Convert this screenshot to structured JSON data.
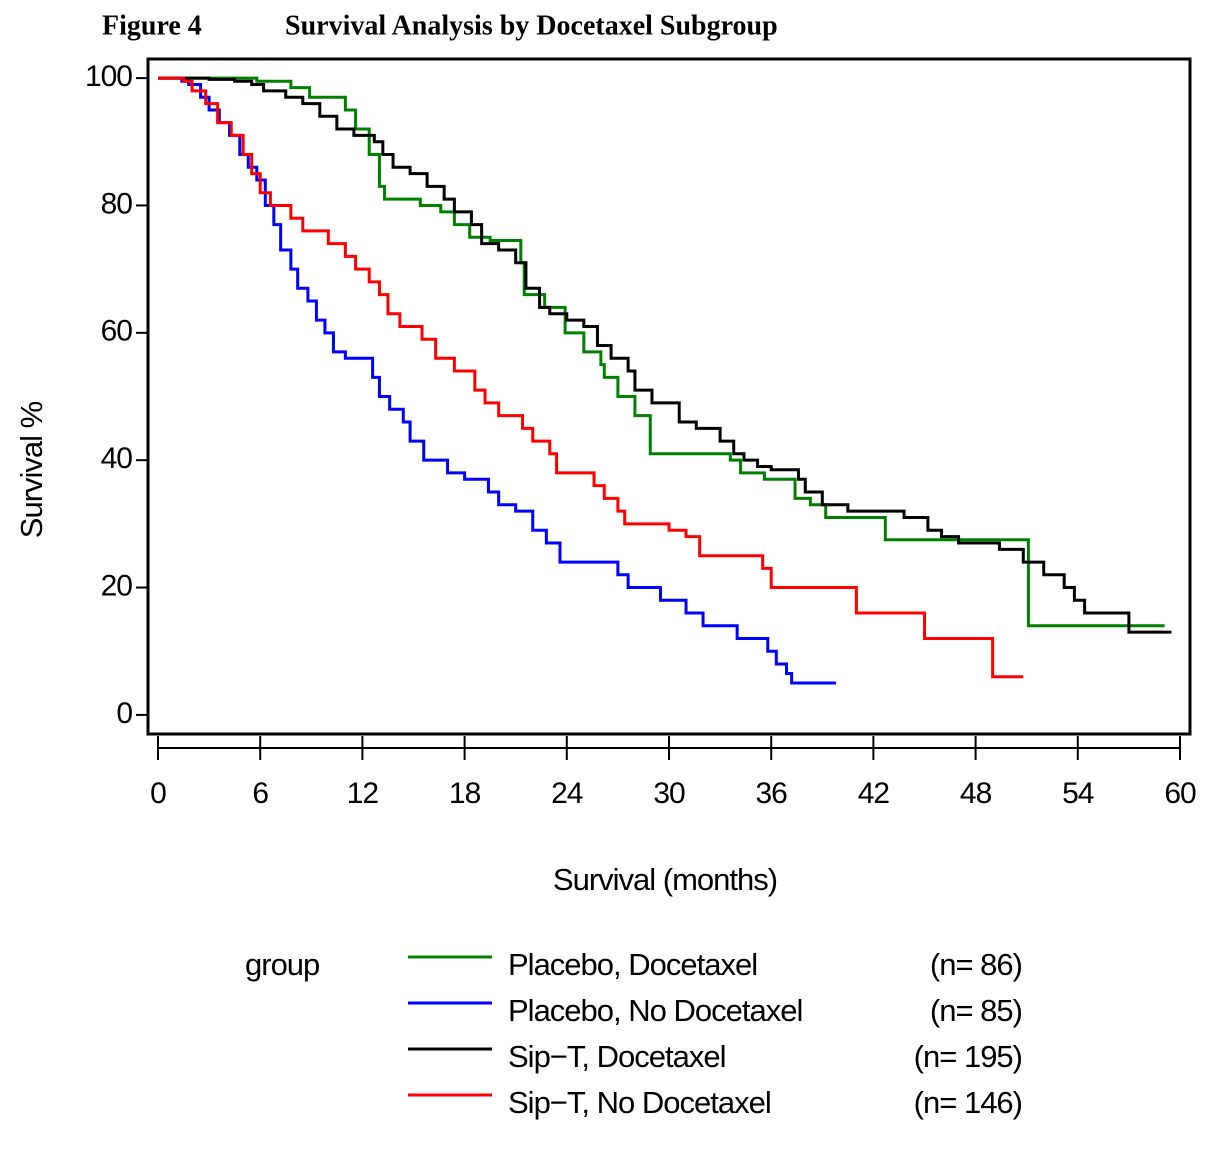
{
  "figure_label": "Figure 4",
  "chart_data": {
    "type": "step",
    "title": "Survival Analysis by Docetaxel Subgroup",
    "xlabel": "Survival (months)",
    "ylabel": "Survival %",
    "legend_title": "group",
    "xlim": [
      0,
      60
    ],
    "xticks": [
      0,
      6,
      12,
      18,
      24,
      30,
      36,
      42,
      48,
      54,
      60
    ],
    "ylim": [
      -3,
      103
    ],
    "yticks": [
      0,
      20,
      40,
      60,
      80,
      100
    ],
    "series": [
      {
        "name": "Placebo, Docetaxel",
        "n_label": "(n= 86)",
        "color": "#008000",
        "x": [
          0,
          5.8,
          7.8,
          8.9,
          11,
          11.6,
          12.4,
          13,
          13.3,
          15.4,
          16.6,
          17.4,
          18.3,
          19.5,
          21.3,
          21.5,
          22.7,
          23.9,
          25,
          26,
          26.2,
          27,
          28,
          28.9,
          33.6,
          34.2,
          35.6,
          37.4,
          38.3,
          39.2,
          42.7,
          51.1,
          59.1
        ],
        "values": [
          100,
          99.5,
          98.5,
          97,
          95,
          92,
          88,
          83,
          81,
          80,
          79,
          77,
          75,
          74.5,
          71,
          66,
          64,
          60,
          57,
          55,
          53,
          50,
          47,
          41,
          40,
          38,
          37,
          34,
          33,
          31,
          27.5,
          14,
          14
        ]
      },
      {
        "name": "Placebo, No Docetaxel",
        "n_label": "(n= 85)",
        "color": "#0000ff",
        "x": [
          0,
          1.4,
          1.8,
          2.5,
          3,
          3.6,
          4.2,
          4.8,
          5.3,
          5.8,
          6.3,
          6.8,
          7.2,
          7.8,
          8.2,
          8.8,
          9.3,
          9.8,
          10.3,
          11,
          12.6,
          13,
          13.6,
          14.4,
          14.8,
          15.6,
          17,
          18,
          19.4,
          20,
          21,
          22,
          22.8,
          23.6,
          27,
          27.6,
          29.5,
          31,
          32,
          34,
          35.8,
          36.3,
          36.9,
          37.2,
          39.8
        ],
        "values": [
          100,
          99.5,
          99,
          97,
          95,
          93,
          91,
          88,
          86,
          84,
          80,
          77,
          73,
          70,
          67,
          65,
          62,
          60,
          57,
          56,
          53,
          50,
          48,
          46,
          43,
          40,
          38,
          37,
          35,
          33,
          32,
          29,
          27,
          24,
          22,
          20,
          18,
          16,
          14,
          12,
          10,
          8,
          6.5,
          5,
          5
        ]
      },
      {
        "name": "Sip−T, Docetaxel",
        "n_label": "(n= 195)",
        "color": "#000000",
        "x": [
          0,
          3,
          4.5,
          5.5,
          6.2,
          7.5,
          8.5,
          9.5,
          10.5,
          11.5,
          12.7,
          13.2,
          13.8,
          14.8,
          15.8,
          16.8,
          17.4,
          18.4,
          19,
          20,
          21,
          21.6,
          22.4,
          23,
          24,
          25,
          25.8,
          26.6,
          27.6,
          28,
          29,
          30.6,
          31.6,
          33,
          33.8,
          34.4,
          35.2,
          36,
          37.6,
          38,
          39,
          40.5,
          43.8,
          45.2,
          46,
          47,
          49.4,
          50.8,
          52,
          53.2,
          53.8,
          54.4,
          57,
          59.5
        ],
        "values": [
          100,
          99.8,
          99.5,
          99,
          98,
          97,
          96,
          94,
          92,
          91,
          90,
          88,
          86,
          85,
          83,
          81,
          79,
          77,
          74,
          73,
          71,
          67,
          64,
          63,
          62,
          61,
          58,
          56,
          54,
          51,
          49,
          46,
          45,
          43,
          41,
          40,
          39,
          38.5,
          37,
          35,
          33,
          32,
          31,
          29,
          28,
          27,
          26,
          24,
          22,
          20,
          18,
          16,
          13,
          13
        ]
      },
      {
        "name": "Sip−T, No Docetaxel",
        "n_label": "(n= 146)",
        "color": "#ff0000",
        "x": [
          0,
          1.5,
          2,
          2.8,
          3.5,
          4.3,
          5,
          5.5,
          6,
          6.6,
          7.8,
          8.5,
          10,
          11,
          11.6,
          12.4,
          13,
          13.5,
          14.2,
          15.5,
          16.3,
          17.4,
          18.6,
          19.2,
          20,
          21.4,
          22,
          23,
          23.4,
          25.6,
          26.2,
          27,
          27.4,
          30,
          31,
          31.8,
          35.5,
          36,
          41,
          45,
          49,
          50.8
        ],
        "values": [
          100,
          99.5,
          98,
          96,
          93,
          91,
          88,
          85,
          82,
          80,
          78,
          76,
          74,
          72,
          70,
          68,
          66,
          63,
          61,
          59,
          56,
          54,
          51,
          49,
          47,
          45,
          43,
          41,
          38,
          36,
          34,
          32,
          30,
          29,
          28,
          25,
          23,
          20,
          16,
          12,
          6,
          6
        ]
      }
    ]
  }
}
